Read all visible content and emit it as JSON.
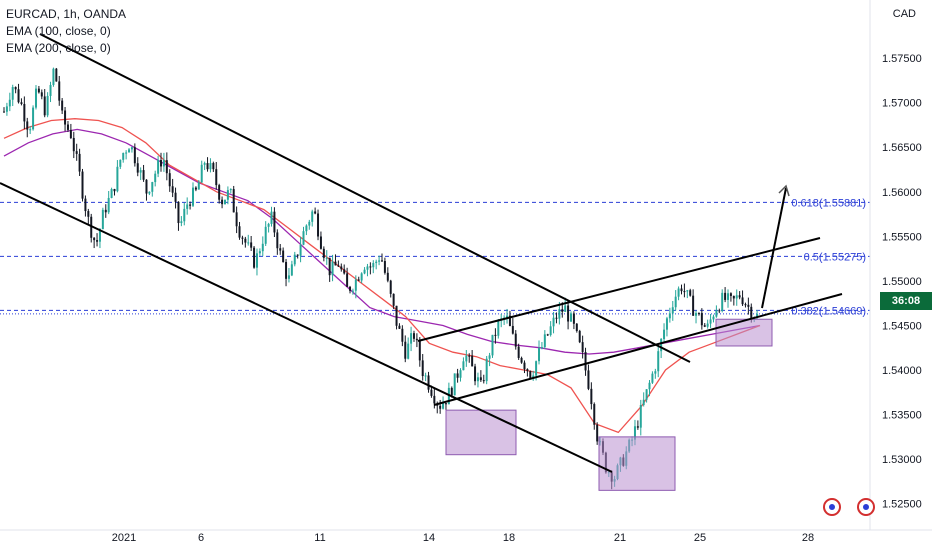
{
  "legend": {
    "symbol": "EURCAD, 1h, OANDA",
    "ema1": "EMA (100, close, 0)",
    "ema2": "EMA (200, close, 0)"
  },
  "currency": "CAD",
  "countdown": "36:08",
  "colors": {
    "up": "#26a69a",
    "down": "#131722",
    "ema100": "#ef5350",
    "ema200": "#9c27b0",
    "fib": "#2b3ed6",
    "box_fill": "#ba8fd0",
    "box_stroke": "#8e5bb0",
    "trend": "#000000",
    "tag": "#0b6b3a"
  },
  "chart_data": {
    "type": "candlestick",
    "title": "EURCAD, 1h, OANDA",
    "y_ticks": [
      "1.57500",
      "1.57000",
      "1.56500",
      "1.56000",
      "1.55500",
      "1.55000",
      "1.54500",
      "1.54000",
      "1.53500",
      "1.53000",
      "1.52500"
    ],
    "x_ticks": [
      "2021",
      "6",
      "11",
      "14",
      "18",
      "21",
      "25",
      "28"
    ],
    "ylim": [
      1.5225,
      1.5795
    ],
    "fib_levels": [
      {
        "label": "0.618(1.55881)",
        "value": 1.55881
      },
      {
        "label": "0.5(1.55275)",
        "value": 1.55275
      },
      {
        "label": "0.382(1.54669)",
        "value": 1.54669
      }
    ],
    "price_path": [
      1.569,
      1.572,
      1.57,
      1.567,
      1.5715,
      1.569,
      1.574,
      1.568,
      1.5665,
      1.562,
      1.557,
      1.554,
      1.558,
      1.56,
      1.564,
      1.5655,
      1.563,
      1.56,
      1.562,
      1.564,
      1.56,
      1.556,
      1.559,
      1.56,
      1.5635,
      1.562,
      1.559,
      1.56,
      1.556,
      1.554,
      1.552,
      1.555,
      1.557,
      1.553,
      1.55,
      1.553,
      1.556,
      1.558,
      1.554,
      1.551,
      1.552,
      1.549,
      1.55,
      1.552,
      1.5515,
      1.553,
      1.549,
      1.545,
      1.542,
      1.544,
      1.54,
      1.538,
      1.536,
      1.537,
      1.539,
      1.542,
      1.54,
      1.538,
      1.542,
      1.545,
      1.546,
      1.543,
      1.541,
      1.5395,
      1.542,
      1.544,
      1.546,
      1.547,
      1.545,
      1.542,
      1.538,
      1.532,
      1.529,
      1.528,
      1.53,
      1.532,
      1.535,
      1.538,
      1.541,
      1.545,
      1.548,
      1.5495,
      1.5475,
      1.546,
      1.5445,
      1.547,
      1.548,
      1.5475,
      1.5485,
      1.547,
      1.546
    ],
    "ema100_path": [
      1.566,
      1.5672,
      1.568,
      1.5682,
      1.568,
      1.5672,
      1.5655,
      1.563,
      1.5615,
      1.56,
      1.559,
      1.558,
      1.556,
      1.554,
      1.552,
      1.55,
      1.548,
      1.546,
      1.543,
      1.542,
      1.5415,
      1.5405,
      1.54,
      1.5395,
      1.538,
      1.534,
      1.533,
      1.536,
      1.54,
      1.542,
      1.543,
      1.544,
      1.545
    ],
    "ema200_path": [
      1.564,
      1.5655,
      1.5665,
      1.567,
      1.5665,
      1.5655,
      1.564,
      1.5625,
      1.561,
      1.56,
      1.559,
      1.557,
      1.5545,
      1.552,
      1.5495,
      1.547,
      1.546,
      1.5455,
      1.545,
      1.544,
      1.5432,
      1.5428,
      1.5425,
      1.542,
      1.5418,
      1.542,
      1.5425,
      1.543,
      1.5435,
      1.544,
      1.5445,
      1.545
    ],
    "boxes": [
      {
        "y_top": 1.5355,
        "y_bot": 1.5305
      },
      {
        "y_top": 1.5325,
        "y_bot": 1.5265
      },
      {
        "y_top": 1.5457,
        "y_bot": 1.5427
      }
    ]
  }
}
